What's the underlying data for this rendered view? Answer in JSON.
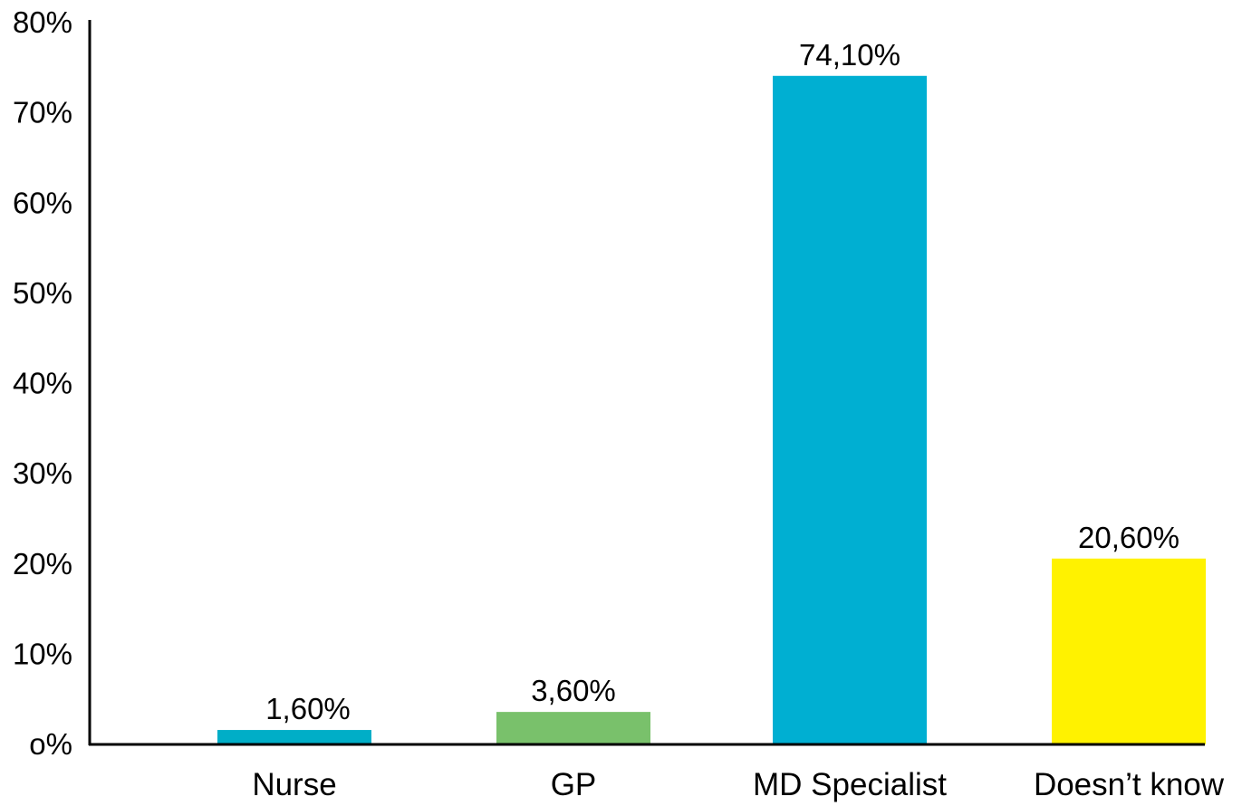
{
  "chart_data": {
    "type": "bar",
    "categories": [
      "Nurse",
      "GP",
      "MD Specialist",
      "Doesn’t know"
    ],
    "values": [
      1.6,
      3.6,
      74.1,
      20.6
    ],
    "value_labels": [
      "1,60%",
      "3,60%",
      "74,10%",
      "20,60%"
    ],
    "colors": [
      "#00aec7",
      "#79c16b",
      "#00afd2",
      "#fff200"
    ],
    "ylim": [
      0,
      80
    ],
    "yticks": [
      0,
      10,
      20,
      30,
      40,
      50,
      60,
      70,
      80
    ],
    "ytick_labels": [
      "o%",
      "10%",
      "20%",
      "30%",
      "40%",
      "50%",
      "60%",
      "70%",
      "80%"
    ],
    "grid": false,
    "legend": "none"
  }
}
